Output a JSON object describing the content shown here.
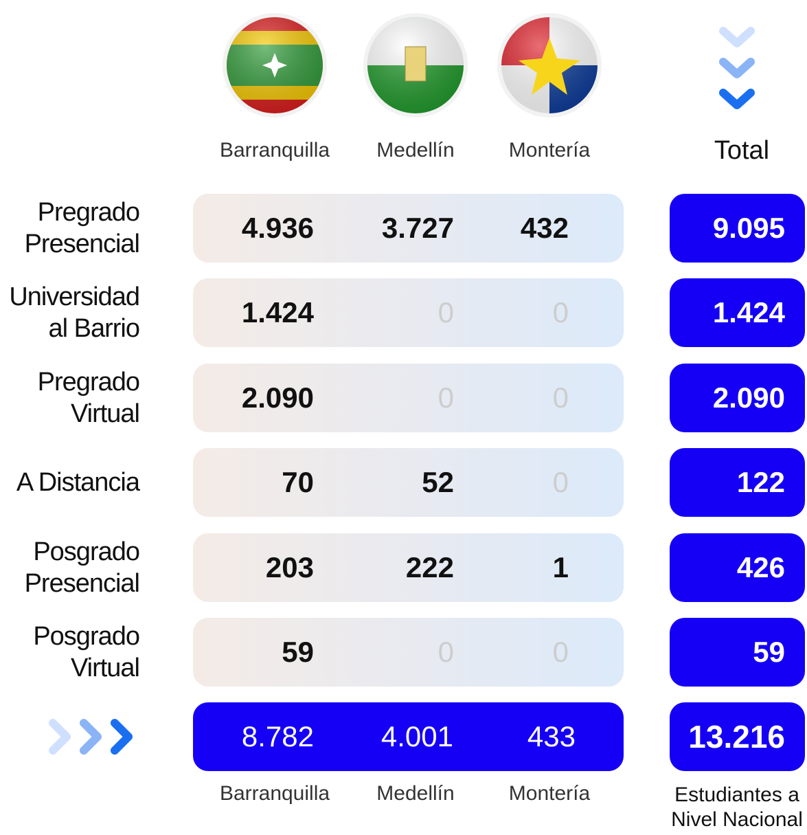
{
  "header": {
    "cities": [
      "Barranquilla",
      "Medellín",
      "Montería"
    ],
    "total_label": "Total"
  },
  "rows": [
    {
      "label": [
        "Pregrado",
        "Presencial"
      ],
      "values": [
        "4.936",
        "3.727",
        "432"
      ],
      "total": "9.095"
    },
    {
      "label": [
        "Universidad",
        "al Barrio"
      ],
      "values": [
        "1.424",
        "0",
        "0"
      ],
      "total": "1.424"
    },
    {
      "label": [
        "Pregrado",
        "Virtual"
      ],
      "values": [
        "2.090",
        "0",
        "0"
      ],
      "total": "2.090"
    },
    {
      "label": [
        "A Distancia"
      ],
      "values": [
        "70",
        "52",
        "0"
      ],
      "total": "122"
    },
    {
      "label": [
        "Posgrado",
        "Presencial"
      ],
      "values": [
        "203",
        "222",
        "1"
      ],
      "total": "426"
    },
    {
      "label": [
        "Posgrado",
        "Virtual"
      ],
      "values": [
        "59",
        "0",
        "0"
      ],
      "total": "59"
    }
  ],
  "footer": {
    "values": [
      "8.782",
      "4.001",
      "433"
    ],
    "total": "13.216",
    "total_caption": [
      "Estudiantes a",
      "Nivel Nacional"
    ]
  }
}
